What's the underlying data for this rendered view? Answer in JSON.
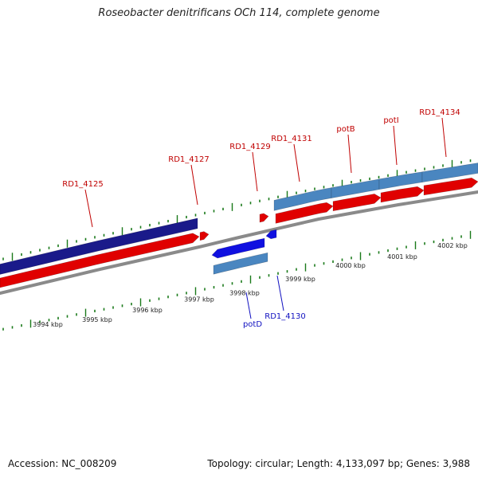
{
  "title": "Roseobacter denitrificans OCh 114, complete genome",
  "footer": {
    "accession": "Accession: NC_008209",
    "topology": "Topology: circular; Length: 4,133,097 bp; Genes: 3,988"
  },
  "colors": {
    "forward_gene": "#e00000",
    "forward_highlight": "#1a1a8a",
    "forward_operon": "#4a86c0",
    "reverse_gene": "#1010e0",
    "reverse_operon": "#4a86c0",
    "backbone": "#8a8a8a",
    "tick": "#1a7a1a",
    "label_forward": "#c00000",
    "label_reverse": "#1010c0"
  },
  "scale_labels": [
    "3994 kbp",
    "3995 kbp",
    "3996 kbp",
    "3997 kbp",
    "3998 kbp",
    "3999 kbp",
    "4000 kbp",
    "4001 kbp",
    "4002 kbp"
  ],
  "gene_labels": {
    "forward": [
      "RD1_4125",
      "RD1_4127",
      "RD1_4129",
      "RD1_4131",
      "potB",
      "potI",
      "RD1_4134"
    ],
    "reverse": [
      "potD",
      "RD1_4130"
    ]
  }
}
